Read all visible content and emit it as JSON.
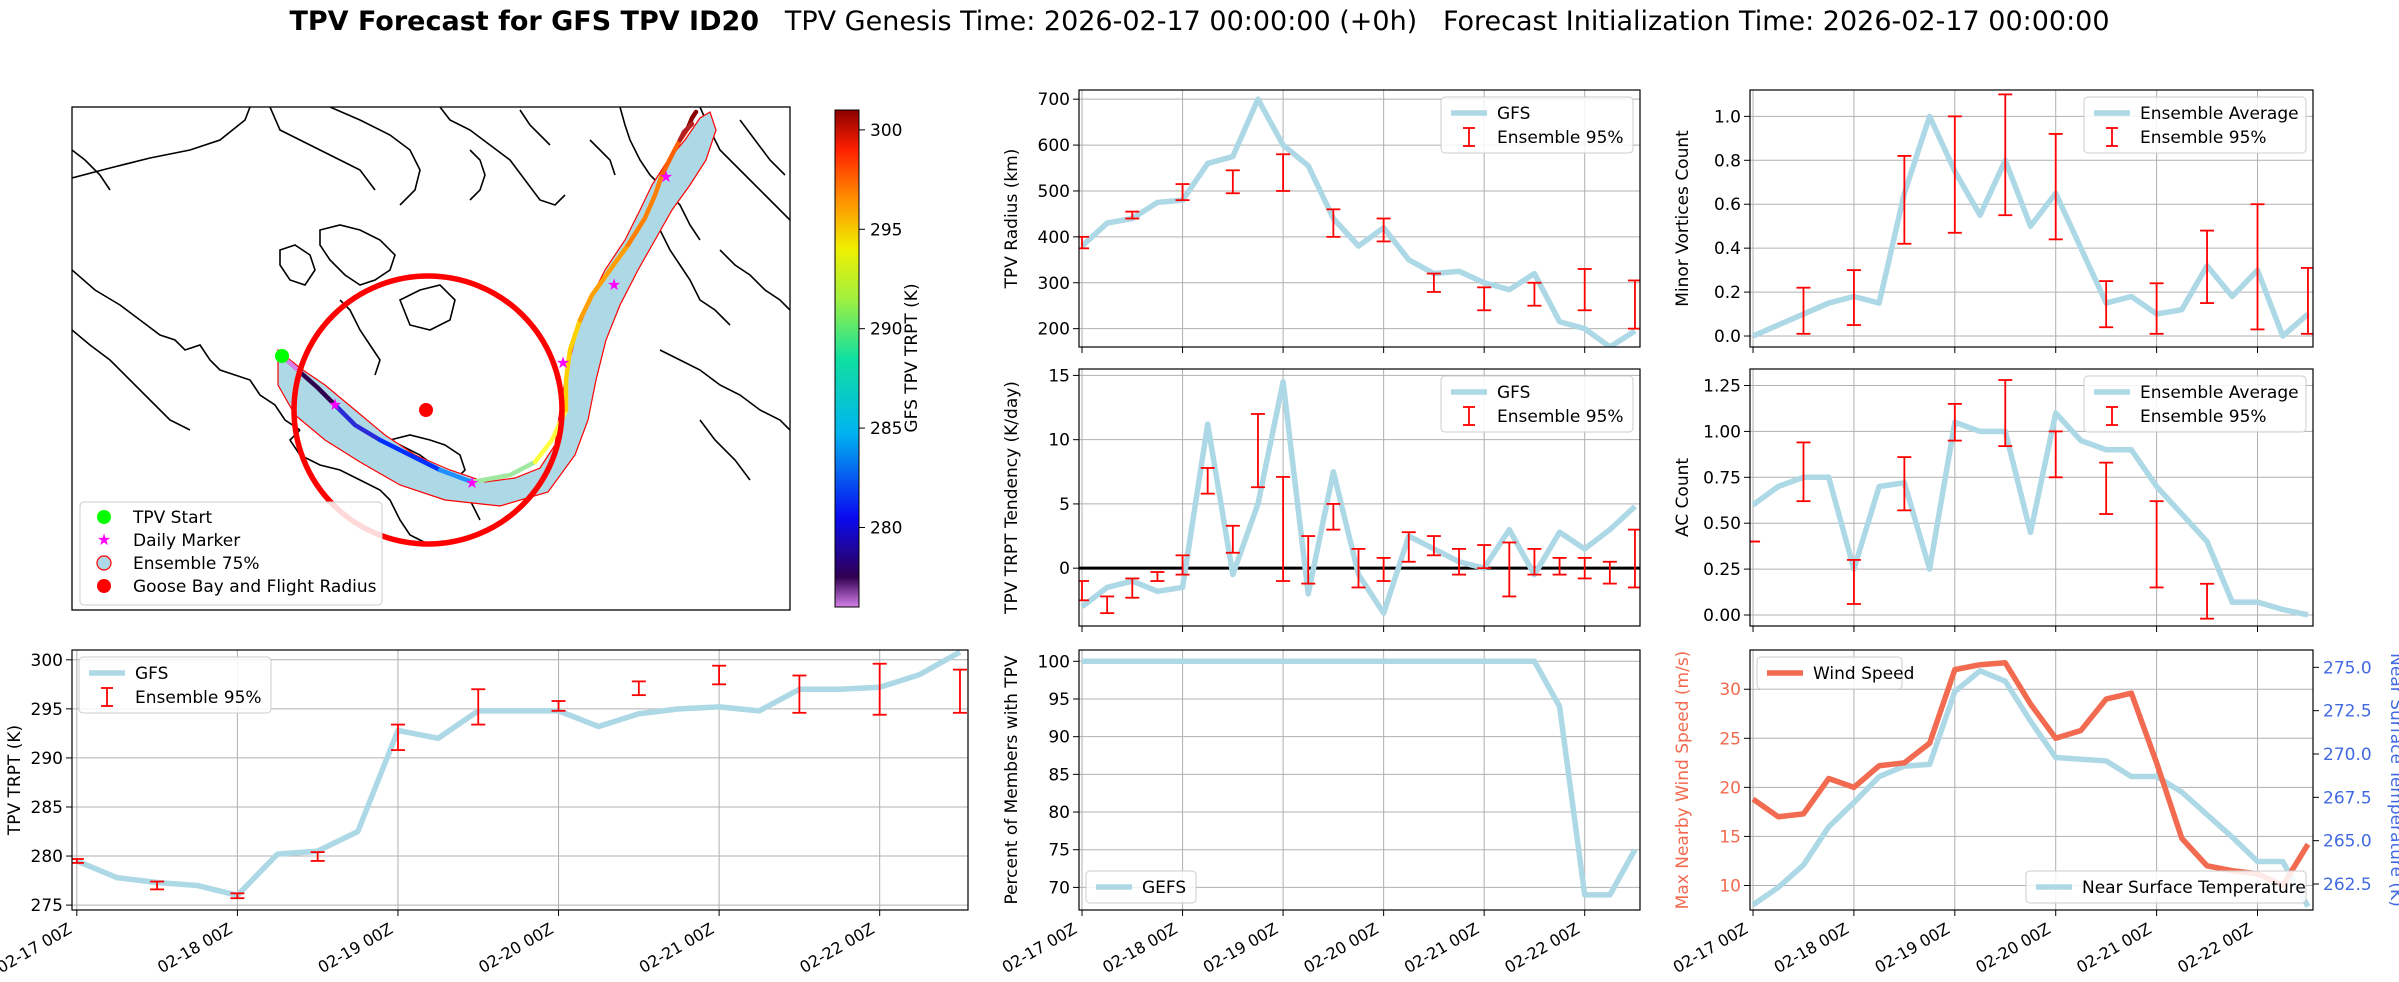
{
  "header": {
    "bold": "TPV Forecast for GFS TPV ID20",
    "rest": "   TPV Genesis Time: 2026-02-17 00:00:00 (+0h)   Forecast Initialization Time: 2026-02-17 00:00:00"
  },
  "map": {
    "legend": [
      "TPV Start",
      "Daily Marker",
      "Ensemble 75%",
      "Goose Bay and Flight Radius"
    ],
    "colorbar_label": "GFS TPV TRPT (K)",
    "colorbar_ticks": [
      280,
      285,
      290,
      295,
      300
    ],
    "colorbar_range": [
      276,
      301
    ]
  },
  "xticks": [
    "02-17 00Z",
    "02-18 00Z",
    "02-19 00Z",
    "02-20 00Z",
    "02-21 00Z",
    "02-22 00Z"
  ],
  "colors": {
    "line": "#add8e6",
    "error": "#ff0000",
    "wind": "#f26a4f",
    "temp_axis": "#4169e1",
    "circle": "#ff0000"
  },
  "chart_data": [
    {
      "id": "radius",
      "type": "line",
      "title": "",
      "ylabel": "TPV Radius (km)",
      "legend": [
        "GFS",
        "Ensemble 95%"
      ],
      "ylim": [
        160,
        720
      ],
      "yticks": [
        200,
        300,
        400,
        500,
        600,
        700
      ],
      "x": [
        0,
        0.25,
        0.5,
        0.75,
        1,
        1.25,
        1.5,
        1.75,
        2,
        2.25,
        2.5,
        2.75,
        3,
        3.25,
        3.5,
        3.75,
        4,
        4.25,
        4.5,
        4.75,
        5,
        5.25,
        5.5
      ],
      "values": [
        380,
        430,
        440,
        475,
        480,
        560,
        575,
        700,
        600,
        555,
        440,
        380,
        420,
        350,
        320,
        325,
        300,
        285,
        320,
        215,
        200,
        160,
        195
      ],
      "errorbars": [
        [
          0,
          375,
          400
        ],
        [
          0.5,
          440,
          455
        ],
        [
          1,
          480,
          515
        ],
        [
          1.5,
          495,
          545
        ],
        [
          2,
          500,
          580
        ],
        [
          2.5,
          400,
          460
        ],
        [
          3,
          390,
          440
        ],
        [
          3.5,
          280,
          320
        ],
        [
          4,
          240,
          290
        ],
        [
          4.5,
          250,
          300
        ],
        [
          5,
          240,
          330
        ],
        [
          5.5,
          200,
          305
        ]
      ]
    },
    {
      "id": "minor",
      "type": "line",
      "title": "",
      "ylabel": "Minor Vortices Count",
      "legend": [
        "Ensemble Average",
        "Ensemble 95%"
      ],
      "ylim": [
        -0.05,
        1.12
      ],
      "yticks": [
        0.0,
        0.2,
        0.4,
        0.6,
        0.8,
        1.0
      ],
      "x": [
        0,
        0.25,
        0.5,
        0.75,
        1,
        1.25,
        1.5,
        1.75,
        2,
        2.25,
        2.5,
        2.75,
        3,
        3.25,
        3.5,
        3.75,
        4,
        4.25,
        4.5,
        4.75,
        5,
        5.25,
        5.5
      ],
      "values": [
        0.0,
        0.05,
        0.1,
        0.15,
        0.18,
        0.15,
        0.65,
        1.0,
        0.75,
        0.55,
        0.8,
        0.5,
        0.65,
        0.4,
        0.15,
        0.18,
        0.1,
        0.12,
        0.32,
        0.18,
        0.3,
        0.0,
        0.1
      ],
      "errorbars": [
        [
          0.5,
          0.01,
          0.22
        ],
        [
          1,
          0.05,
          0.3
        ],
        [
          1.5,
          0.42,
          0.82
        ],
        [
          2,
          0.47,
          1.0
        ],
        [
          2.5,
          0.55,
          1.1
        ],
        [
          3,
          0.44,
          0.92
        ],
        [
          3.5,
          0.04,
          0.25
        ],
        [
          4,
          0.01,
          0.24
        ],
        [
          4.5,
          0.15,
          0.48
        ],
        [
          5,
          0.03,
          0.6
        ],
        [
          5.5,
          0.01,
          0.31
        ]
      ]
    },
    {
      "id": "tendency",
      "type": "line",
      "title": "",
      "ylabel": "TPV TRPT Tendency (K/day)",
      "legend": [
        "GFS",
        "Ensemble 95%"
      ],
      "ylim": [
        -4.5,
        15.5
      ],
      "yticks": [
        0,
        5,
        10,
        15
      ],
      "x": [
        0,
        0.25,
        0.5,
        0.75,
        1,
        1.25,
        1.5,
        1.75,
        2,
        2.25,
        2.5,
        2.75,
        3,
        3.25,
        3.5,
        3.75,
        4,
        4.25,
        4.5,
        4.75,
        5,
        5.25,
        5.5
      ],
      "values": [
        -3.0,
        -1.5,
        -1.0,
        -1.8,
        -1.5,
        11.2,
        -0.5,
        5.0,
        14.5,
        -2.0,
        7.5,
        -0.5,
        -3.5,
        2.5,
        1.5,
        0.5,
        0.0,
        3.0,
        -0.5,
        2.8,
        1.5,
        3.0,
        4.8
      ],
      "errorbars": [
        [
          0,
          -2.5,
          -1.0
        ],
        [
          0.25,
          -3.5,
          -2.2
        ],
        [
          0.5,
          -2.3,
          -0.8
        ],
        [
          0.75,
          -1.0,
          -0.3
        ],
        [
          1,
          -0.5,
          1.0
        ],
        [
          1.25,
          5.8,
          7.8
        ],
        [
          1.5,
          1.2,
          3.3
        ],
        [
          1.75,
          6.3,
          12.0
        ],
        [
          2,
          -1.0,
          7.1
        ],
        [
          2.25,
          -1.2,
          2.5
        ],
        [
          2.5,
          3.0,
          5.0
        ],
        [
          2.75,
          -1.5,
          1.5
        ],
        [
          3,
          -1.0,
          0.8
        ],
        [
          3.25,
          0.5,
          2.8
        ],
        [
          3.5,
          1.0,
          2.5
        ],
        [
          3.75,
          -0.5,
          1.5
        ],
        [
          4,
          0.0,
          1.8
        ],
        [
          4.25,
          -2.2,
          2.0
        ],
        [
          4.5,
          -0.5,
          1.5
        ],
        [
          4.75,
          -0.5,
          0.8
        ],
        [
          5,
          -0.8,
          0.8
        ],
        [
          5.25,
          -1.2,
          0.5
        ],
        [
          5.5,
          -1.5,
          3.0
        ]
      ]
    },
    {
      "id": "ac",
      "type": "line",
      "title": "",
      "ylabel": "AC Count",
      "legend": [
        "Ensemble Average",
        "Ensemble 95%"
      ],
      "ylim": [
        -0.06,
        1.34
      ],
      "yticks": [
        0.0,
        0.25,
        0.5,
        0.75,
        1.0,
        1.25
      ],
      "x": [
        0,
        0.25,
        0.5,
        0.75,
        1,
        1.25,
        1.5,
        1.75,
        2,
        2.25,
        2.5,
        2.75,
        3,
        3.25,
        3.5,
        3.75,
        4,
        4.25,
        4.5,
        4.75,
        5,
        5.25,
        5.5
      ],
      "values": [
        0.6,
        0.7,
        0.75,
        0.75,
        0.25,
        0.7,
        0.72,
        0.25,
        1.05,
        1.0,
        1.0,
        0.45,
        1.1,
        0.95,
        0.9,
        0.9,
        0.7,
        0.55,
        0.4,
        0.07,
        0.07,
        0.03,
        0.0
      ],
      "errorbars": [
        [
          0,
          0.4,
          0.4
        ],
        [
          0.5,
          0.62,
          0.94
        ],
        [
          1,
          0.06,
          0.3
        ],
        [
          1.5,
          0.57,
          0.86
        ],
        [
          2,
          0.95,
          1.15
        ],
        [
          2.5,
          0.92,
          1.28
        ],
        [
          3,
          0.75,
          1.0
        ],
        [
          3.5,
          0.55,
          0.83
        ],
        [
          4,
          0.15,
          0.62
        ],
        [
          4.5,
          -0.02,
          0.17
        ]
      ]
    },
    {
      "id": "trpt",
      "type": "line",
      "title": "",
      "ylabel": "TPV TRPT (K)",
      "legend": [
        "GFS",
        "Ensemble 95%"
      ],
      "ylim": [
        274.5,
        301
      ],
      "yticks": [
        275,
        280,
        285,
        290,
        295,
        300
      ],
      "x": [
        0,
        0.25,
        0.5,
        0.75,
        1,
        1.25,
        1.5,
        1.75,
        2,
        2.25,
        2.5,
        2.75,
        3,
        3.25,
        3.5,
        3.75,
        4,
        4.25,
        4.5,
        4.75,
        5,
        5.25,
        5.5
      ],
      "values": [
        279.5,
        277.8,
        277.3,
        277.0,
        276.0,
        280.2,
        280.5,
        282.5,
        292.8,
        292.0,
        294.8,
        294.8,
        294.8,
        293.2,
        294.5,
        295.0,
        295.2,
        294.8,
        297.0,
        297.0,
        297.2,
        298.5,
        300.8
      ],
      "errorbars": [
        [
          0,
          279.3,
          279.7
        ],
        [
          0.5,
          276.6,
          277.4
        ],
        [
          1,
          275.7,
          276.2
        ],
        [
          1.5,
          279.5,
          280.4
        ],
        [
          2,
          290.8,
          293.4
        ],
        [
          2.5,
          293.4,
          297.0
        ],
        [
          3,
          294.8,
          295.8
        ],
        [
          3.5,
          296.4,
          297.8
        ],
        [
          4,
          297.5,
          299.4
        ],
        [
          4.5,
          294.6,
          298.4
        ],
        [
          5,
          294.4,
          299.6
        ],
        [
          5.5,
          294.6,
          299.0
        ]
      ]
    },
    {
      "id": "percent",
      "type": "line",
      "title": "",
      "ylabel": "Percent of Members with TPV",
      "legend": [
        "GEFS"
      ],
      "ylim": [
        67,
        101.5
      ],
      "yticks": [
        70,
        75,
        80,
        85,
        90,
        95,
        100
      ],
      "x": [
        0,
        0.5,
        1,
        1.5,
        2,
        2.5,
        3,
        3.5,
        4,
        4.5,
        4.75,
        5,
        5.25,
        5.5
      ],
      "values": [
        100,
        100,
        100,
        100,
        100,
        100,
        100,
        100,
        100,
        100,
        94,
        69,
        69,
        75
      ]
    },
    {
      "id": "wind",
      "type": "line",
      "title": "",
      "ylabel": "Max Nearby Wind Speed (m/s)",
      "y2label": "Near Surface Temperature (K)",
      "legend": [
        "Wind Speed",
        "Near Surface Temperature"
      ],
      "ylim": [
        7.5,
        34
      ],
      "yticks": [
        10,
        15,
        20,
        25,
        30
      ],
      "y2lim": [
        261,
        276
      ],
      "y2ticks": [
        262.5,
        265.0,
        267.5,
        270.0,
        272.5,
        275.0
      ],
      "x": [
        0,
        0.25,
        0.5,
        0.75,
        1,
        1.25,
        1.5,
        1.75,
        2,
        2.25,
        2.5,
        2.75,
        3,
        3.25,
        3.5,
        3.75,
        4,
        4.25,
        4.5,
        4.75,
        5,
        5.25,
        5.5
      ],
      "series": [
        {
          "name": "Wind Speed",
          "values": [
            18.8,
            17.0,
            17.3,
            20.9,
            20.0,
            22.2,
            22.5,
            24.5,
            32.0,
            32.5,
            32.7,
            28.5,
            25.0,
            25.8,
            29.0,
            29.6,
            22.5,
            14.8,
            12.0,
            11.5,
            11.2,
            10.0,
            14.2
          ]
        },
        {
          "name": "Near Surface Temperature",
          "values": [
            261.3,
            262.3,
            263.6,
            265.8,
            267.2,
            268.7,
            269.3,
            269.4,
            273.6,
            274.8,
            274.2,
            271.9,
            269.8,
            269.7,
            269.6,
            268.7,
            268.7,
            267.8,
            266.5,
            265.2,
            263.8,
            263.8,
            261.2
          ]
        }
      ]
    }
  ]
}
